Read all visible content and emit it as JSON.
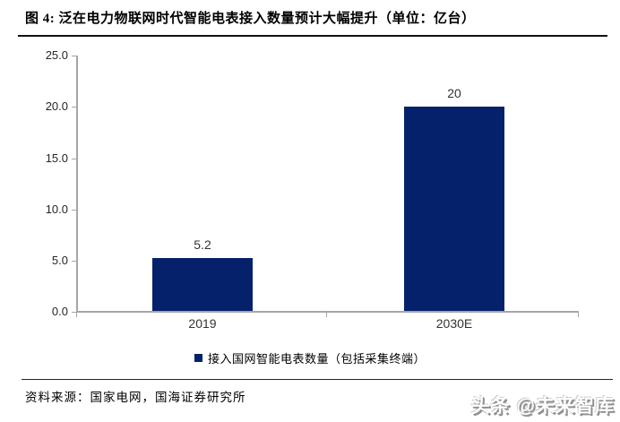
{
  "header": {
    "title": "图 4: 泛在电力物联网时代智能电表接入数量预计大幅提升（单位：亿台）"
  },
  "chart_data": {
    "type": "bar",
    "title": "泛在电力物联网时代智能电表接入数量预计大幅提升",
    "unit": "亿台",
    "categories": [
      "2019",
      "2030E"
    ],
    "values": [
      5.2,
      20
    ],
    "value_labels": [
      "5.2",
      "20"
    ],
    "series_name": "接入国网智能电表数量（包括采集终端）",
    "ylim": [
      0,
      25
    ],
    "yticks": [
      "25.0",
      "20.0",
      "15.0",
      "10.0",
      "5.0",
      "0.0"
    ],
    "bar_color": "#05216b",
    "axis_color": "#a6a6a6",
    "grid": false,
    "legend_position": "bottom"
  },
  "legend": {
    "label": "接入国网智能电表数量（包括采集终端）",
    "marker_color": "#05216b"
  },
  "footer": {
    "source": "资料来源：国家电网，国海证券研究所",
    "watermark": "头条 @未来智库"
  }
}
